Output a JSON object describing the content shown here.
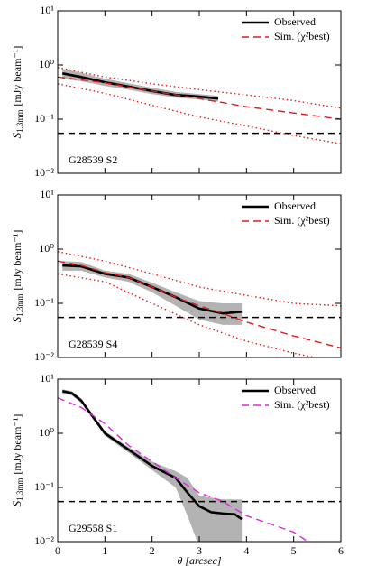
{
  "chart_data": [
    {
      "type": "line",
      "log_y": true,
      "annotation": "G28539 S2",
      "ylabel_symbol": "S",
      "ylabel_subscript": "1.3mm",
      "ylabel_unit": "[mJy beam⁻¹]",
      "xlim": [
        0,
        6
      ],
      "xticks": [
        0,
        1,
        2,
        3,
        4,
        5,
        6
      ],
      "ylim": [
        0.01,
        10
      ],
      "yticks": [
        {
          "value": 0.01,
          "label": "10⁻²"
        },
        {
          "value": 0.1,
          "label": "10⁻¹"
        },
        {
          "value": 1,
          "label": "10⁰"
        },
        {
          "value": 10,
          "label": "10¹"
        }
      ],
      "threshold": 0.055,
      "legend": "upper right",
      "series": [
        {
          "name": "Observed",
          "color": "#000000",
          "style": "solid",
          "band_color": "#b3b3b3",
          "x": [
            0.1,
            0.5,
            1,
            1.5,
            2,
            2.5,
            3,
            3.4
          ],
          "values": [
            0.7,
            0.6,
            0.48,
            0.4,
            0.33,
            0.28,
            0.26,
            0.24
          ],
          "lower": [
            0.56,
            0.5,
            0.41,
            0.35,
            0.29,
            0.25,
            0.23,
            0.21
          ],
          "upper": [
            0.85,
            0.72,
            0.56,
            0.46,
            0.38,
            0.32,
            0.29,
            0.27
          ]
        },
        {
          "name": "Sim. (χ²best)",
          "color": "#e41a1c",
          "style": "dashed",
          "x": [
            0,
            1,
            2,
            3,
            4,
            5,
            6
          ],
          "values": [
            0.6,
            0.47,
            0.33,
            0.24,
            0.17,
            0.13,
            0.1
          ]
        },
        {
          "color": "#e41a1c",
          "style": "dotted",
          "x": [
            0,
            1,
            2,
            3,
            4,
            5,
            6
          ],
          "values": [
            0.9,
            0.6,
            0.45,
            0.35,
            0.28,
            0.22,
            0.16
          ]
        },
        {
          "color": "#e41a1c",
          "style": "dotted",
          "x": [
            0,
            1,
            2,
            3,
            4,
            5,
            6
          ],
          "values": [
            0.45,
            0.3,
            0.18,
            0.11,
            0.075,
            0.05,
            0.035
          ]
        }
      ]
    },
    {
      "type": "line",
      "log_y": true,
      "annotation": "G28539 S4",
      "ylabel_symbol": "S",
      "ylabel_subscript": "1.3mm",
      "ylabel_unit": "[mJy beam⁻¹]",
      "xlim": [
        0,
        6
      ],
      "xticks": [
        0,
        1,
        2,
        3,
        4,
        5,
        6
      ],
      "ylim": [
        0.01,
        10
      ],
      "yticks": [
        {
          "value": 0.01,
          "label": "10⁻²"
        },
        {
          "value": 0.1,
          "label": "10⁻¹"
        },
        {
          "value": 1,
          "label": "10⁰"
        },
        {
          "value": 10,
          "label": "10¹"
        }
      ],
      "threshold": 0.055,
      "legend": "upper right",
      "series": [
        {
          "name": "Observed",
          "color": "#000000",
          "style": "solid",
          "band_color": "#b3b3b3",
          "x": [
            0.1,
            0.5,
            1,
            1.5,
            2,
            2.5,
            3,
            3.5,
            3.9
          ],
          "values": [
            0.5,
            0.48,
            0.35,
            0.3,
            0.2,
            0.13,
            0.08,
            0.065,
            0.07
          ],
          "lower": [
            0.4,
            0.4,
            0.3,
            0.25,
            0.16,
            0.09,
            0.05,
            0.04,
            0.04
          ],
          "upper": [
            0.6,
            0.58,
            0.4,
            0.35,
            0.24,
            0.16,
            0.11,
            0.1,
            0.1
          ]
        },
        {
          "name": "Sim. (χ²best)",
          "color": "#e41a1c",
          "style": "dashed",
          "x": [
            0,
            0.5,
            1,
            1.5,
            2,
            2.5,
            3,
            3.5,
            4,
            5,
            6
          ],
          "values": [
            0.6,
            0.5,
            0.37,
            0.3,
            0.2,
            0.13,
            0.09,
            0.065,
            0.045,
            0.025,
            0.015
          ]
        },
        {
          "color": "#e41a1c",
          "style": "dotted",
          "x": [
            0,
            1,
            2,
            3,
            4,
            5,
            6
          ],
          "values": [
            0.9,
            0.6,
            0.35,
            0.2,
            0.14,
            0.1,
            0.09
          ]
        },
        {
          "color": "#e41a1c",
          "style": "dotted",
          "x": [
            0,
            1,
            2,
            3,
            4,
            5,
            6
          ],
          "values": [
            0.35,
            0.25,
            0.1,
            0.04,
            0.02,
            0.012,
            0.008
          ]
        }
      ]
    },
    {
      "type": "line",
      "log_y": true,
      "annotation": "G29558 S1",
      "ylabel_symbol": "S",
      "ylabel_subscript": "1.3mm",
      "ylabel_unit": "[mJy beam⁻¹]",
      "xlabel": "θ  [arcsec]",
      "xlim": [
        0,
        6
      ],
      "xticks": [
        0,
        1,
        2,
        3,
        4,
        5,
        6
      ],
      "ylim": [
        0.01,
        10
      ],
      "yticks": [
        {
          "value": 0.01,
          "label": "10⁻²"
        },
        {
          "value": 0.1,
          "label": "10⁻¹"
        },
        {
          "value": 1,
          "label": "10⁰"
        },
        {
          "value": 10,
          "label": "10¹"
        }
      ],
      "threshold": 0.055,
      "legend": "upper right",
      "series": [
        {
          "name": "Observed",
          "color": "#000000",
          "style": "solid",
          "band_color": "#b3b3b3",
          "x": [
            0.1,
            0.3,
            0.5,
            0.75,
            1,
            1.5,
            2,
            2.5,
            2.75,
            3,
            3.25,
            3.5,
            3.75,
            3.9
          ],
          "values": [
            6,
            5.5,
            4,
            2,
            1.0,
            0.5,
            0.25,
            0.15,
            0.08,
            0.045,
            0.035,
            0.033,
            0.032,
            0.026
          ],
          "lower": [
            5.5,
            5,
            3.6,
            1.8,
            0.9,
            0.44,
            0.21,
            0.1,
            0.03,
            0.008,
            0.008,
            0.008,
            0.008,
            0.008
          ],
          "upper": [
            6.5,
            6,
            4.4,
            2.2,
            1.1,
            0.56,
            0.3,
            0.2,
            0.15,
            0.07,
            0.065,
            0.06,
            0.06,
            0.06
          ]
        },
        {
          "name": "Sim. (χ²best)",
          "color": "#e026e0",
          "style": "dashed",
          "x": [
            0,
            0.5,
            1,
            1.5,
            2,
            2.5,
            3,
            3.5,
            4,
            5,
            5.3
          ],
          "values": [
            4.5,
            3,
            1.5,
            0.6,
            0.3,
            0.15,
            0.08,
            0.055,
            0.03,
            0.015,
            0.01
          ]
        }
      ]
    }
  ]
}
